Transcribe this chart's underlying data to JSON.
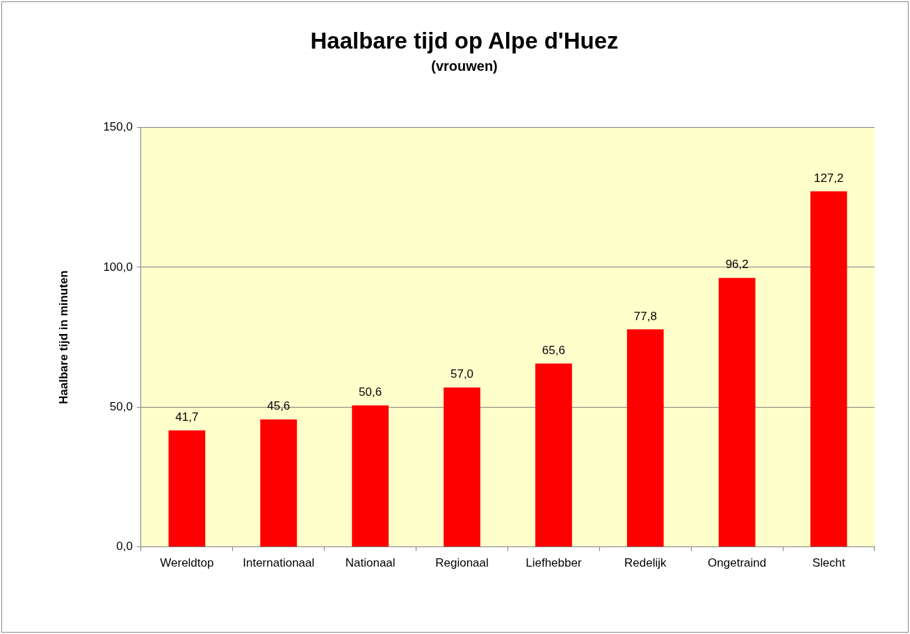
{
  "chart_data": {
    "type": "bar",
    "title": "Haalbare tijd op Alpe d'Huez",
    "subtitle": "(vrouwen)",
    "ylabel": "Haalbare tijd in minuten",
    "categories": [
      "Wereldtop",
      "Internationaal",
      "Nationaal",
      "Regionaal",
      "Liefhebber",
      "Redelijk",
      "Ongetraind",
      "Slecht"
    ],
    "values": [
      41.7,
      45.6,
      50.6,
      57.0,
      65.6,
      77.8,
      96.2,
      127.2
    ],
    "value_labels": [
      "41,7",
      "45,6",
      "50,6",
      "57,0",
      "65,6",
      "77,8",
      "96,2",
      "127,2"
    ],
    "color": "#ff0000",
    "ylim": [
      0,
      150
    ],
    "yticks": [
      {
        "value": 0,
        "label": "0,0"
      },
      {
        "value": 50,
        "label": "50,0"
      },
      {
        "value": 100,
        "label": "100,0"
      },
      {
        "value": 150,
        "label": "150,0"
      }
    ],
    "grid": "y",
    "legend": false
  }
}
